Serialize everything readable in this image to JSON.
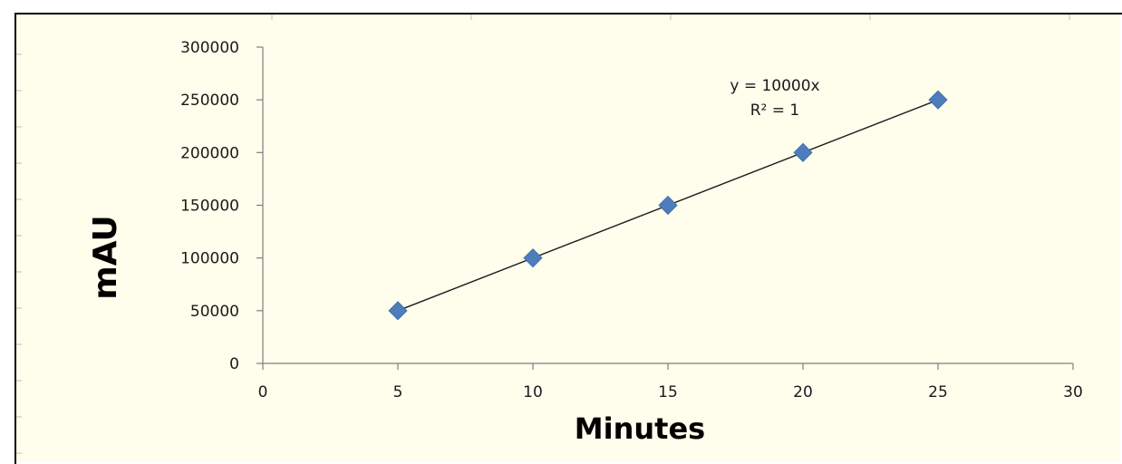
{
  "colors": {
    "plot_background": "#fffdec",
    "marker": "#4f7dbb",
    "trendline": "#1a1a1a",
    "axis": "#7f7f7f"
  },
  "chart_data": {
    "type": "scatter",
    "x": [
      5,
      10,
      15,
      20,
      25
    ],
    "y": [
      50000,
      100000,
      150000,
      200000,
      250000
    ],
    "xlabel": "Minutes",
    "ylabel": "mAU",
    "xlim": [
      0,
      30
    ],
    "ylim": [
      0,
      300000
    ],
    "xticks": [
      "0",
      "5",
      "10",
      "15",
      "20",
      "25",
      "30"
    ],
    "yticks": [
      "0",
      "50000",
      "100000",
      "150000",
      "200000",
      "250000",
      "300000"
    ],
    "marker": "diamond",
    "grid": false,
    "legend": "none",
    "trendline": {
      "type": "linear",
      "equation": "y = 10000x",
      "r_squared": "R² = 1"
    }
  }
}
